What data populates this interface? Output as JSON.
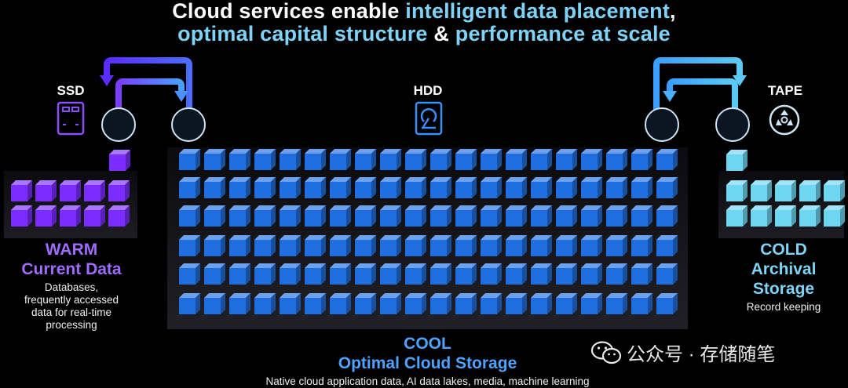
{
  "title": {
    "line1": [
      {
        "text": "Cloud services enable ",
        "hl": false
      },
      {
        "text": "intelligent data placement",
        "hl": true
      },
      {
        "text": ",",
        "hl": false
      }
    ],
    "line2": [
      {
        "text": "optimal capital structure",
        "hl": true
      },
      {
        "text": " & ",
        "hl": false
      },
      {
        "text": "performance at scale",
        "hl": true
      }
    ]
  },
  "media": {
    "ssd": "SSD",
    "hdd": "HDD",
    "tape": "TAPE"
  },
  "tiers": {
    "warm": {
      "name1": "WARM",
      "name2": "Current Data",
      "desc": [
        "Databases,",
        "frequently accessed",
        "data for real-time",
        "processing"
      ],
      "color": "#7b2cff"
    },
    "cool": {
      "name1": "COOL",
      "name2": "Optimal Cloud Storage",
      "desc": "Native cloud application data, AI data lakes, media, machine learning",
      "color": "#1f6fe0"
    },
    "cold": {
      "name1": "COLD",
      "name2": "Archival",
      "name3": "Storage",
      "desc": "Record keeping",
      "color": "#6fd6f2"
    }
  },
  "watermark": "公众号 · 存储随笔",
  "icons": [
    "ssd-icon",
    "hdd-icon",
    "tape-icon",
    "wechat-icon",
    "transfer-arrow-icon",
    "cube-icon"
  ]
}
